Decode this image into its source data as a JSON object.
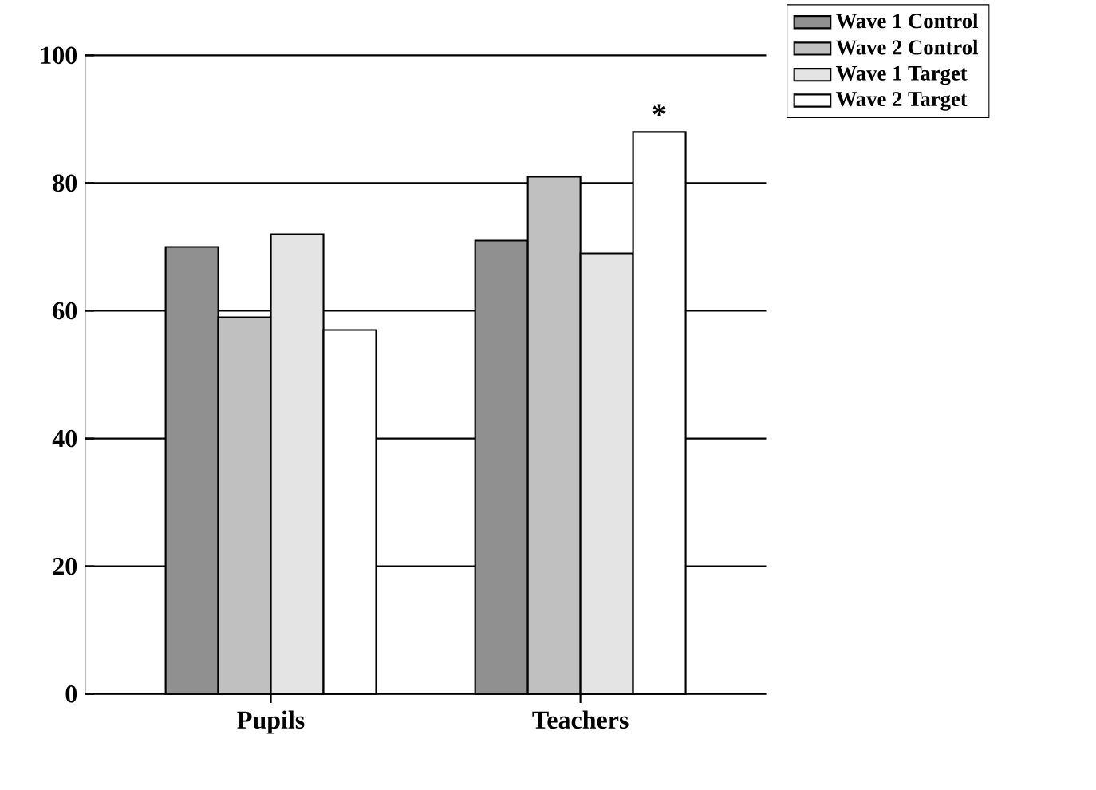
{
  "chart_data": {
    "type": "bar",
    "categories": [
      "Pupils",
      "Teachers"
    ],
    "series": [
      {
        "name": "Wave 1 Control",
        "color": "#909090",
        "values": [
          70,
          71
        ]
      },
      {
        "name": "Wave 2 Control",
        "color": "#c0c0c0",
        "values": [
          59,
          81
        ]
      },
      {
        "name": "Wave 1 Target",
        "color": "#e4e4e4",
        "values": [
          72,
          69
        ]
      },
      {
        "name": "Wave 2 Target",
        "color": "#ffffff",
        "values": [
          57,
          88
        ]
      }
    ],
    "ylim": [
      0,
      100
    ],
    "yticks": [
      0,
      20,
      40,
      60,
      80,
      100
    ],
    "grid": "y",
    "legend": "top right",
    "annotations": [
      "*"
    ]
  }
}
